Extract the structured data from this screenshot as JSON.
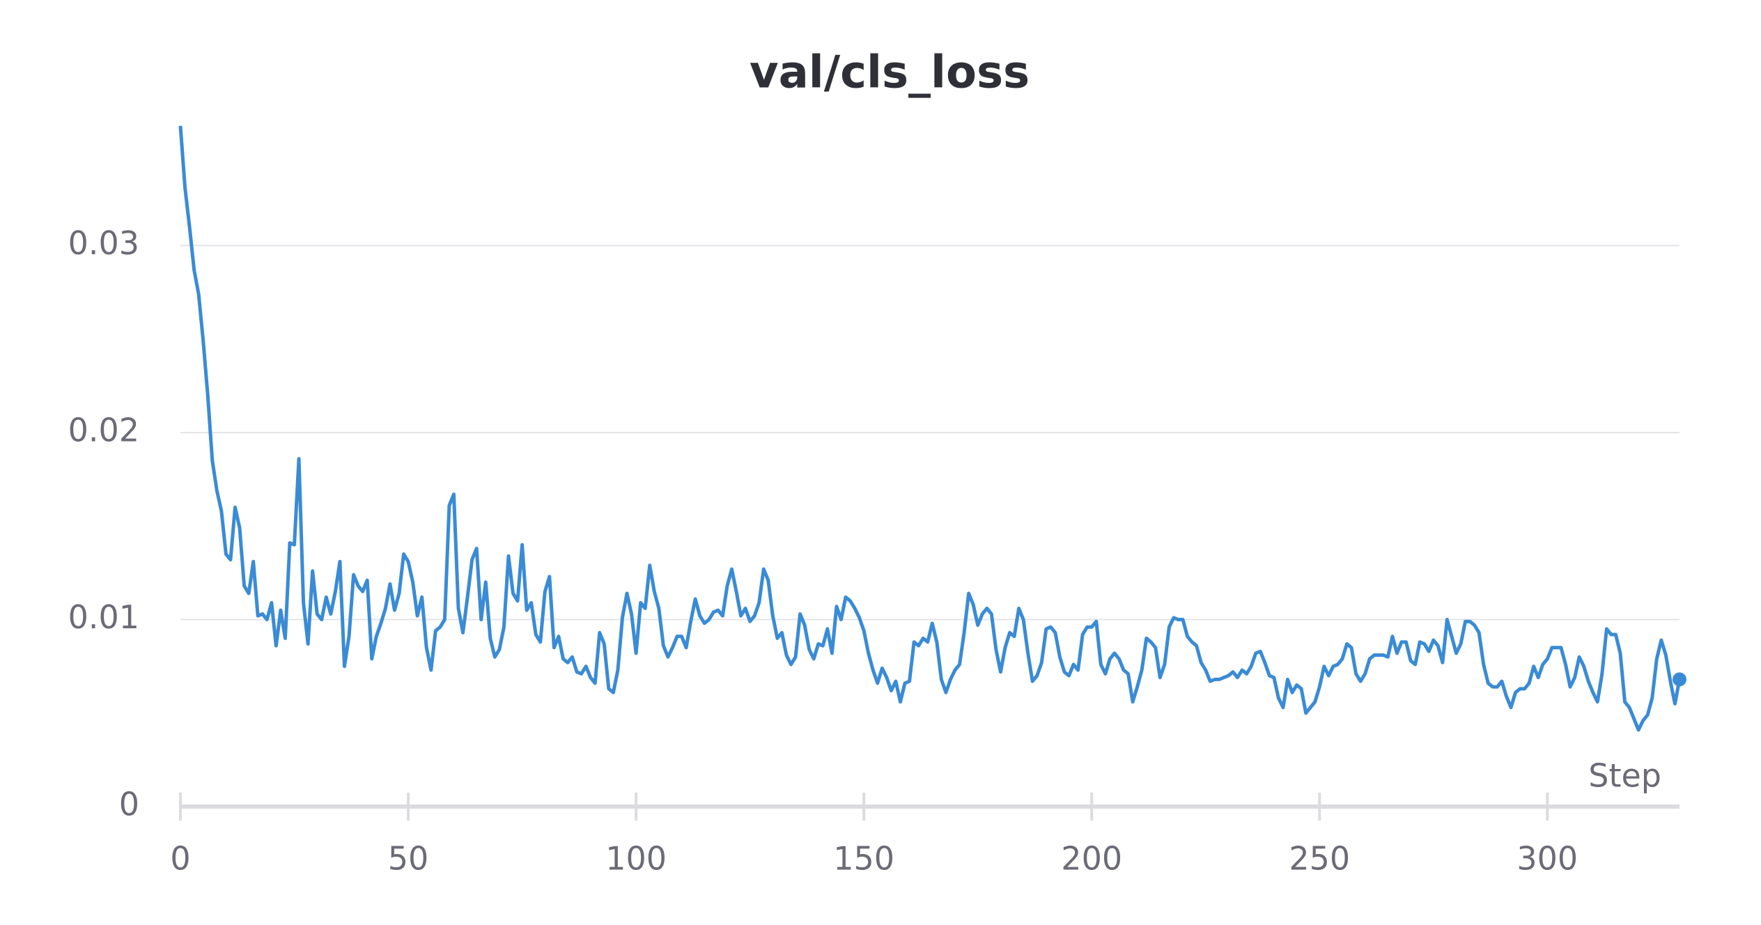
{
  "chart_data": {
    "type": "line",
    "title": "val/cls_loss",
    "x_label": "Step",
    "color": "#3a8bd6",
    "x": [
      0,
      1,
      2,
      3,
      4,
      5,
      6,
      7,
      8,
      9,
      10,
      11,
      12,
      13,
      14,
      15,
      16,
      17,
      18,
      19,
      20,
      21,
      22,
      23,
      24,
      25,
      26,
      27,
      28,
      29,
      30,
      31,
      32,
      33,
      34,
      35,
      36,
      37,
      38,
      39,
      40,
      41,
      42,
      43,
      44,
      45,
      46,
      47,
      48,
      49,
      50,
      51,
      52,
      53,
      54,
      55,
      56,
      57,
      58,
      59,
      60,
      61,
      62,
      63,
      64,
      65,
      66,
      67,
      68,
      69,
      70,
      71,
      72,
      73,
      74,
      75,
      76,
      77,
      78,
      79,
      80,
      81,
      82,
      83,
      84,
      85,
      86,
      87,
      88,
      89,
      90,
      91,
      92,
      93,
      94,
      95,
      96,
      97,
      98,
      99,
      100,
      101,
      102,
      103,
      104,
      105,
      106,
      107,
      108,
      109,
      110,
      111,
      112,
      113,
      114,
      115,
      116,
      117,
      118,
      119,
      120,
      121,
      122,
      123,
      124,
      125,
      126,
      127,
      128,
      129,
      130,
      131,
      132,
      133,
      134,
      135,
      136,
      137,
      138,
      139,
      140,
      141,
      142,
      143,
      144,
      145,
      146,
      147,
      148,
      149,
      150,
      151,
      152,
      153,
      154,
      155,
      156,
      157,
      158,
      159,
      160,
      161,
      162,
      163,
      164,
      165,
      166,
      167,
      168,
      169,
      170,
      171,
      172,
      173,
      174,
      175,
      176,
      177,
      178,
      179,
      180,
      181,
      182,
      183,
      184,
      185,
      186,
      187,
      188,
      189,
      190,
      191,
      192,
      193,
      194,
      195,
      196,
      197,
      198,
      199,
      200,
      201,
      202,
      203,
      204,
      205,
      206,
      207,
      208,
      209,
      210,
      211,
      212,
      213,
      214,
      215,
      216,
      217,
      218,
      219,
      220,
      221,
      222,
      223,
      224,
      225,
      226,
      227,
      228,
      229,
      230,
      231,
      232,
      233,
      234,
      235,
      236,
      237,
      238,
      239,
      240,
      241,
      242,
      243,
      244,
      245,
      246,
      247,
      248,
      249,
      250,
      251,
      252,
      253,
      254,
      255,
      256,
      257,
      258,
      259,
      260,
      261,
      262,
      263,
      264,
      265,
      266,
      267,
      268,
      269,
      270,
      271,
      272,
      273,
      274,
      275,
      276,
      277,
      278,
      279,
      280,
      281,
      282,
      283,
      284,
      285,
      286,
      287,
      288,
      289,
      290,
      291,
      292,
      293,
      294,
      295,
      296,
      297,
      298,
      299,
      300,
      301,
      302,
      303,
      304,
      305,
      306,
      307,
      308,
      309,
      310,
      311,
      312,
      313,
      314,
      315,
      316,
      317,
      318,
      319,
      320,
      321,
      322,
      323,
      324,
      325,
      326,
      327,
      328,
      329
    ],
    "values": [
      0.0364,
      0.0331,
      0.031,
      0.0287,
      0.0274,
      0.0249,
      0.022,
      0.0185,
      0.0169,
      0.0158,
      0.0135,
      0.0132,
      0.016,
      0.0149,
      0.0118,
      0.0114,
      0.0131,
      0.0102,
      0.0103,
      0.01,
      0.0109,
      0.0086,
      0.0105,
      0.009,
      0.0141,
      0.014,
      0.0186,
      0.0109,
      0.0087,
      0.0126,
      0.0103,
      0.01,
      0.0112,
      0.0103,
      0.0115,
      0.0131,
      0.0075,
      0.0091,
      0.0124,
      0.0118,
      0.0115,
      0.0121,
      0.0079,
      0.0091,
      0.0098,
      0.0106,
      0.0119,
      0.0105,
      0.0114,
      0.0135,
      0.0131,
      0.012,
      0.0102,
      0.0112,
      0.0085,
      0.0073,
      0.0094,
      0.0096,
      0.01,
      0.0161,
      0.0167,
      0.0106,
      0.0093,
      0.0112,
      0.0132,
      0.0138,
      0.01,
      0.012,
      0.009,
      0.008,
      0.0084,
      0.0096,
      0.0134,
      0.0114,
      0.011,
      0.014,
      0.0105,
      0.0109,
      0.0092,
      0.0088,
      0.0115,
      0.0123,
      0.0085,
      0.0091,
      0.0079,
      0.0077,
      0.008,
      0.0072,
      0.0071,
      0.0075,
      0.0069,
      0.0066,
      0.0093,
      0.0087,
      0.0063,
      0.0061,
      0.0073,
      0.0101,
      0.0114,
      0.0103,
      0.0082,
      0.0109,
      0.0106,
      0.0129,
      0.0115,
      0.0106,
      0.0086,
      0.008,
      0.0085,
      0.0091,
      0.0091,
      0.0085,
      0.0099,
      0.0111,
      0.0102,
      0.0098,
      0.01,
      0.0104,
      0.0105,
      0.0102,
      0.0118,
      0.0127,
      0.0115,
      0.0102,
      0.0106,
      0.0099,
      0.0102,
      0.0109,
      0.0127,
      0.0121,
      0.0102,
      0.009,
      0.0093,
      0.0081,
      0.0076,
      0.008,
      0.0103,
      0.0097,
      0.0084,
      0.0079,
      0.0087,
      0.0086,
      0.0095,
      0.0082,
      0.0107,
      0.01,
      0.0112,
      0.011,
      0.0106,
      0.0101,
      0.0094,
      0.0082,
      0.0073,
      0.0066,
      0.0074,
      0.0069,
      0.0062,
      0.0067,
      0.0056,
      0.0066,
      0.0067,
      0.0088,
      0.0086,
      0.009,
      0.0088,
      0.0098,
      0.0088,
      0.0068,
      0.0061,
      0.0068,
      0.0073,
      0.0076,
      0.0093,
      0.0114,
      0.0108,
      0.0097,
      0.0103,
      0.0106,
      0.0103,
      0.0084,
      0.0072,
      0.0085,
      0.0093,
      0.0091,
      0.0106,
      0.01,
      0.0082,
      0.0067,
      0.007,
      0.0077,
      0.0095,
      0.0096,
      0.0093,
      0.008,
      0.0072,
      0.007,
      0.0076,
      0.0073,
      0.0092,
      0.0096,
      0.0096,
      0.0099,
      0.0076,
      0.0071,
      0.0079,
      0.0082,
      0.0079,
      0.0073,
      0.0071,
      0.0056,
      0.0064,
      0.0073,
      0.009,
      0.0088,
      0.0085,
      0.0069,
      0.0076,
      0.0096,
      0.0101,
      0.01,
      0.01,
      0.0091,
      0.0088,
      0.0086,
      0.0077,
      0.0073,
      0.0067,
      0.0068,
      0.0068,
      0.0069,
      0.007,
      0.0072,
      0.0069,
      0.0073,
      0.0071,
      0.0075,
      0.0082,
      0.0083,
      0.0077,
      0.007,
      0.0069,
      0.0058,
      0.0053,
      0.0068,
      0.0061,
      0.0065,
      0.0063,
      0.005,
      0.0053,
      0.0056,
      0.0064,
      0.0075,
      0.007,
      0.0075,
      0.0076,
      0.0079,
      0.0087,
      0.0085,
      0.0071,
      0.0067,
      0.0071,
      0.0079,
      0.0081,
      0.0081,
      0.0081,
      0.008,
      0.0091,
      0.0082,
      0.0088,
      0.0088,
      0.0078,
      0.0076,
      0.0088,
      0.0087,
      0.0083,
      0.0089,
      0.0086,
      0.0077,
      0.01,
      0.0091,
      0.0082,
      0.0087,
      0.0099,
      0.0099,
      0.0097,
      0.0093,
      0.0076,
      0.0066,
      0.0064,
      0.0064,
      0.0067,
      0.0059,
      0.0053,
      0.0061,
      0.0063,
      0.0063,
      0.0066,
      0.0075,
      0.0069,
      0.0076,
      0.0079,
      0.0085,
      0.0085,
      0.0085,
      0.0076,
      0.0064,
      0.0069,
      0.008,
      0.0075,
      0.0067,
      0.0061,
      0.0056,
      0.0071,
      0.0095,
      0.0092,
      0.0092,
      0.0082,
      0.0056,
      0.0053,
      0.0047,
      0.0041,
      0.0046,
      0.0049,
      0.0058,
      0.0079,
      0.0089,
      0.0081,
      0.0067,
      0.0055,
      0.0068
    ],
    "xlim": [
      0,
      329
    ],
    "xticks": [
      0,
      50,
      100,
      150,
      200,
      250,
      300
    ],
    "ylim": [
      0,
      0.0365
    ],
    "yticks": [
      0,
      0.01,
      0.02,
      0.03
    ],
    "grid": true
  }
}
